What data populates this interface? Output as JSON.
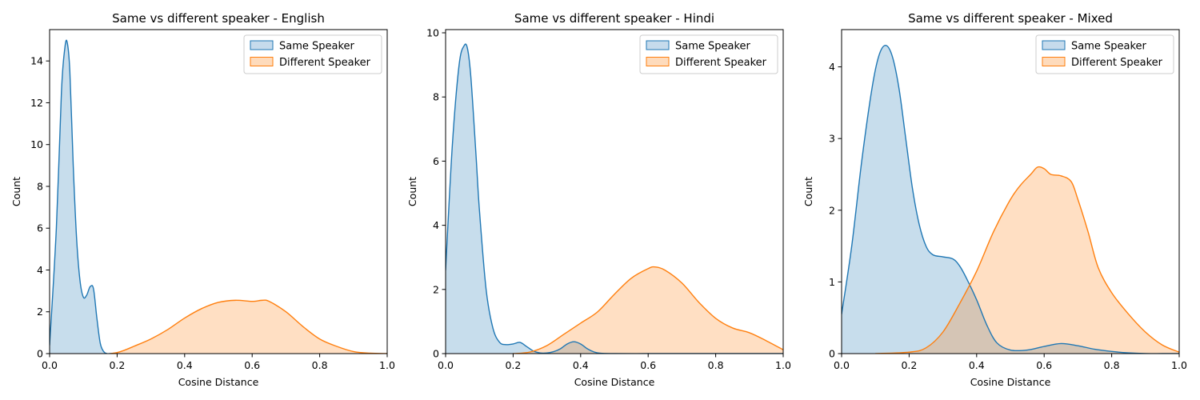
{
  "colors": {
    "same": "#1f77b4",
    "different": "#ff7f0e",
    "same_fill": "#c6dbec",
    "different_fill": "#fedbbc",
    "overlap_fill": "#d2c0ae"
  },
  "chart_data": [
    {
      "type": "area",
      "title": "Same vs different speaker - English",
      "xlabel": "Cosine Distance",
      "ylabel": "Count",
      "xlim": [
        0,
        1.0
      ],
      "ylim": [
        0,
        15.5
      ],
      "xticks": [
        "0.0",
        "0.2",
        "0.4",
        "0.6",
        "0.8",
        "1.0"
      ],
      "yticks": [
        0,
        2,
        4,
        6,
        8,
        10,
        12,
        14
      ],
      "ytick_labels": [
        "0",
        "2",
        "4",
        "6",
        "8",
        "10",
        "12",
        "14"
      ],
      "grid": false,
      "legend": "top-right",
      "series": [
        {
          "name": "Same Speaker",
          "x": [
            0.0,
            0.02,
            0.035,
            0.045,
            0.052,
            0.06,
            0.07,
            0.08,
            0.09,
            0.1,
            0.11,
            0.12,
            0.13,
            0.14,
            0.15,
            0.16,
            0.17,
            0.18,
            0.19
          ],
          "y": [
            0.4,
            6.0,
            12.5,
            14.6,
            14.9,
            13.5,
            9.0,
            5.5,
            3.5,
            2.7,
            2.8,
            3.2,
            3.1,
            1.7,
            0.5,
            0.1,
            0.0,
            0.0,
            0.0
          ]
        },
        {
          "name": "Different Speaker",
          "x": [
            0.18,
            0.2,
            0.22,
            0.25,
            0.3,
            0.35,
            0.4,
            0.45,
            0.5,
            0.55,
            0.6,
            0.63,
            0.65,
            0.7,
            0.75,
            0.8,
            0.85,
            0.9,
            0.95,
            1.0
          ],
          "y": [
            0.0,
            0.05,
            0.15,
            0.35,
            0.7,
            1.15,
            1.7,
            2.15,
            2.45,
            2.55,
            2.5,
            2.55,
            2.5,
            2.0,
            1.3,
            0.7,
            0.35,
            0.1,
            0.02,
            0.0
          ]
        }
      ]
    },
    {
      "type": "area",
      "title": "Same vs different speaker - Hindi",
      "xlabel": "Cosine Distance",
      "ylabel": "Count",
      "xlim": [
        0,
        1.0
      ],
      "ylim": [
        0,
        10.1
      ],
      "xticks": [
        "0.0",
        "0.2",
        "0.4",
        "0.6",
        "0.8",
        "1.0"
      ],
      "yticks": [
        0,
        2,
        4,
        6,
        8,
        10
      ],
      "ytick_labels": [
        "0",
        "2",
        "4",
        "6",
        "8",
        "10"
      ],
      "grid": false,
      "legend": "top-right",
      "series": [
        {
          "name": "Same Speaker",
          "x": [
            0.0,
            0.02,
            0.04,
            0.055,
            0.065,
            0.075,
            0.09,
            0.1,
            0.12,
            0.14,
            0.16,
            0.18,
            0.2,
            0.22,
            0.24,
            0.26,
            0.28,
            0.3,
            0.32,
            0.34,
            0.36,
            0.38,
            0.4,
            0.42,
            0.44,
            0.46,
            0.5,
            0.6,
            0.7,
            0.8,
            0.9,
            1.0
          ],
          "y": [
            2.6,
            6.5,
            9.0,
            9.6,
            9.5,
            8.6,
            6.2,
            4.5,
            2.0,
            0.8,
            0.35,
            0.28,
            0.3,
            0.35,
            0.22,
            0.08,
            0.02,
            0.02,
            0.06,
            0.15,
            0.3,
            0.37,
            0.3,
            0.15,
            0.05,
            0.01,
            0.0,
            0.0,
            0.0,
            0.0,
            0.0,
            0.0
          ]
        },
        {
          "name": "Different Speaker",
          "x": [
            0.2,
            0.25,
            0.3,
            0.35,
            0.4,
            0.45,
            0.5,
            0.55,
            0.6,
            0.62,
            0.65,
            0.7,
            0.75,
            0.8,
            0.85,
            0.9,
            0.95,
            1.0
          ],
          "y": [
            0.0,
            0.05,
            0.25,
            0.6,
            0.95,
            1.3,
            1.85,
            2.35,
            2.65,
            2.7,
            2.6,
            2.2,
            1.6,
            1.1,
            0.8,
            0.65,
            0.4,
            0.12
          ]
        }
      ]
    },
    {
      "type": "area",
      "title": "Same vs different speaker - Mixed",
      "xlabel": "Cosine Distance",
      "ylabel": "Count",
      "xlim": [
        0,
        1.0
      ],
      "ylim": [
        0,
        4.52
      ],
      "xticks": [
        "0.0",
        "0.2",
        "0.4",
        "0.6",
        "0.8",
        "1.0"
      ],
      "yticks": [
        0,
        1,
        2,
        3,
        4
      ],
      "ytick_labels": [
        "0",
        "1",
        "2",
        "3",
        "4"
      ],
      "grid": false,
      "legend": "top-right",
      "series": [
        {
          "name": "Same Speaker",
          "x": [
            0.0,
            0.03,
            0.06,
            0.09,
            0.11,
            0.13,
            0.15,
            0.17,
            0.19,
            0.21,
            0.23,
            0.25,
            0.27,
            0.3,
            0.33,
            0.35,
            0.37,
            0.4,
            0.43,
            0.46,
            0.5,
            0.55,
            0.6,
            0.65,
            0.7,
            0.75,
            0.8,
            0.85,
            0.9,
            0.95,
            1.0
          ],
          "y": [
            0.55,
            1.5,
            2.7,
            3.7,
            4.15,
            4.3,
            4.15,
            3.7,
            3.0,
            2.3,
            1.8,
            1.5,
            1.38,
            1.35,
            1.32,
            1.22,
            1.05,
            0.75,
            0.4,
            0.15,
            0.05,
            0.05,
            0.1,
            0.14,
            0.11,
            0.06,
            0.03,
            0.01,
            0.0,
            0.0,
            0.0
          ]
        },
        {
          "name": "Different Speaker",
          "x": [
            0.1,
            0.2,
            0.25,
            0.3,
            0.35,
            0.4,
            0.45,
            0.5,
            0.53,
            0.56,
            0.58,
            0.6,
            0.62,
            0.65,
            0.68,
            0.7,
            0.73,
            0.76,
            0.8,
            0.85,
            0.9,
            0.95,
            1.0
          ],
          "y": [
            0.0,
            0.02,
            0.08,
            0.3,
            0.7,
            1.15,
            1.7,
            2.15,
            2.35,
            2.5,
            2.6,
            2.58,
            2.5,
            2.48,
            2.4,
            2.15,
            1.7,
            1.2,
            0.85,
            0.55,
            0.3,
            0.12,
            0.02
          ]
        }
      ]
    }
  ]
}
